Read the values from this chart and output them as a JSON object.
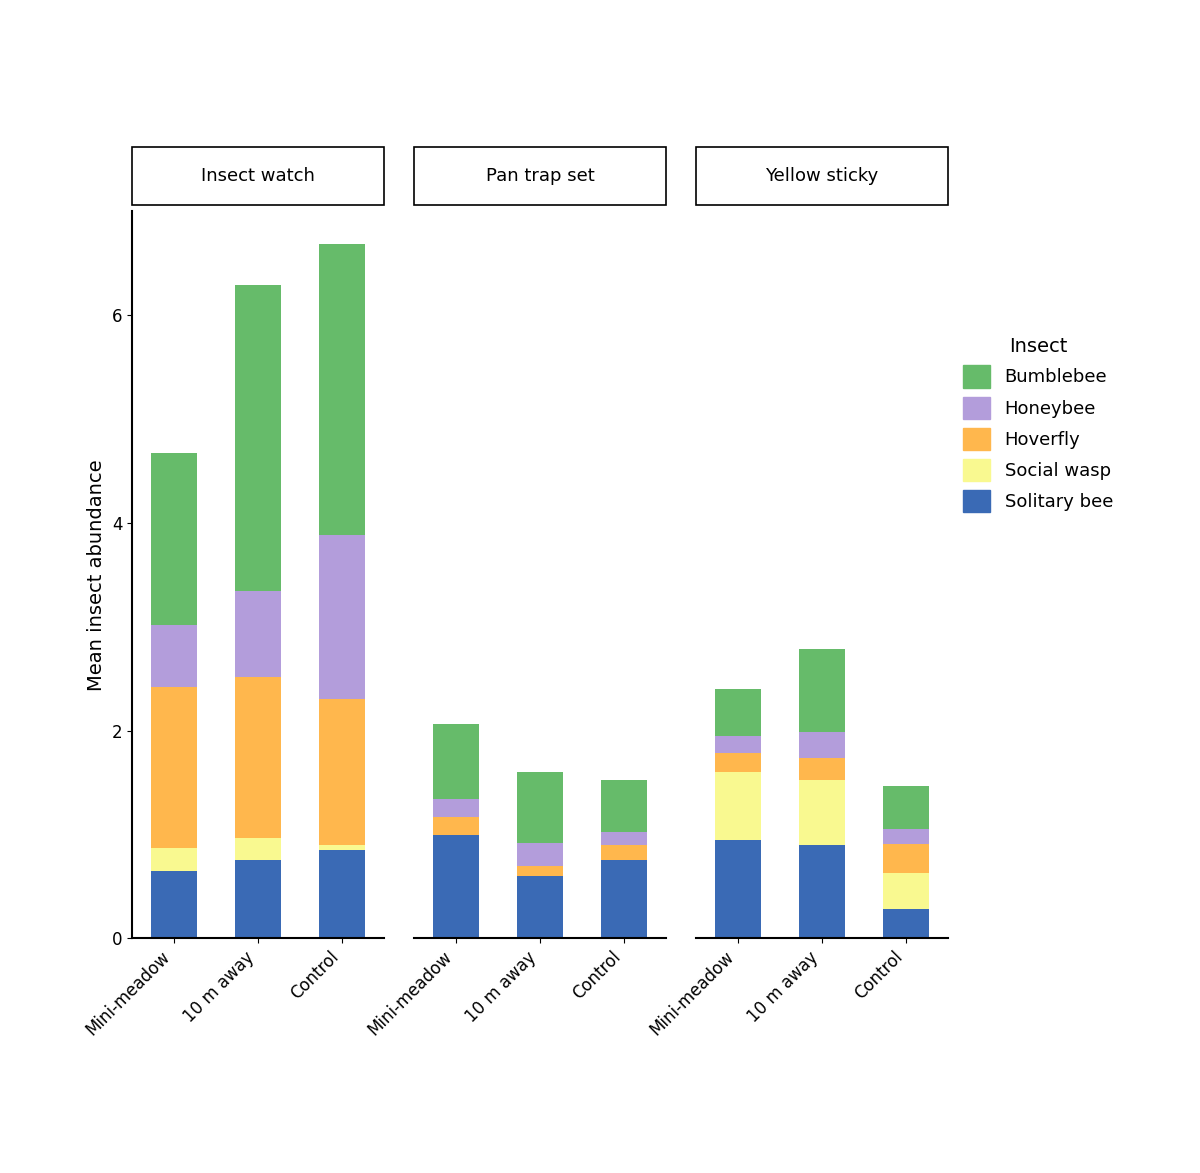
{
  "sampling_methods": [
    "Insect watch",
    "Pan trap set",
    "Yellow sticky"
  ],
  "treatments": [
    "Mini-meadow",
    "10 m away",
    "Control"
  ],
  "insects_order": [
    "Solitary bee",
    "Social wasp",
    "Hoverfly",
    "Honeybee",
    "Bumblebee"
  ],
  "colors": {
    "Bumblebee": "#66bb6a",
    "Honeybee": "#b39ddb",
    "Hoverfly": "#ffb74d",
    "Social wasp": "#f9f990",
    "Solitary bee": "#3a6ab5"
  },
  "data": {
    "Insect watch": {
      "Mini-meadow": {
        "Solitary bee": 0.65,
        "Social wasp": 0.22,
        "Hoverfly": 1.55,
        "Honeybee": 0.6,
        "Bumblebee": 1.65
      },
      "10 m away": {
        "Solitary bee": 0.75,
        "Social wasp": 0.22,
        "Hoverfly": 1.55,
        "Honeybee": 0.82,
        "Bumblebee": 2.95
      },
      "Control": {
        "Solitary bee": 0.85,
        "Social wasp": 0.05,
        "Hoverfly": 1.4,
        "Honeybee": 1.58,
        "Bumblebee": 2.8
      }
    },
    "Pan trap set": {
      "Mini-meadow": {
        "Solitary bee": 1.0,
        "Social wasp": 0.0,
        "Hoverfly": 0.17,
        "Honeybee": 0.17,
        "Bumblebee": 0.72
      },
      "10 m away": {
        "Solitary bee": 0.6,
        "Social wasp": 0.0,
        "Hoverfly": 0.1,
        "Honeybee": 0.22,
        "Bumblebee": 0.68
      },
      "Control": {
        "Solitary bee": 0.75,
        "Social wasp": 0.0,
        "Hoverfly": 0.15,
        "Honeybee": 0.12,
        "Bumblebee": 0.5
      }
    },
    "Yellow sticky": {
      "Mini-meadow": {
        "Solitary bee": 0.95,
        "Social wasp": 0.65,
        "Hoverfly": 0.18,
        "Honeybee": 0.17,
        "Bumblebee": 0.45
      },
      "10 m away": {
        "Solitary bee": 0.9,
        "Social wasp": 0.62,
        "Hoverfly": 0.22,
        "Honeybee": 0.25,
        "Bumblebee": 0.8
      },
      "Control": {
        "Solitary bee": 0.28,
        "Social wasp": 0.35,
        "Hoverfly": 0.28,
        "Honeybee": 0.14,
        "Bumblebee": 0.42
      }
    }
  },
  "ylabel": "Mean insect abundance",
  "ylim": [
    0,
    7.0
  ],
  "yticks": [
    0,
    2,
    4,
    6
  ],
  "legend_title": "Insect",
  "bar_width": 0.55
}
